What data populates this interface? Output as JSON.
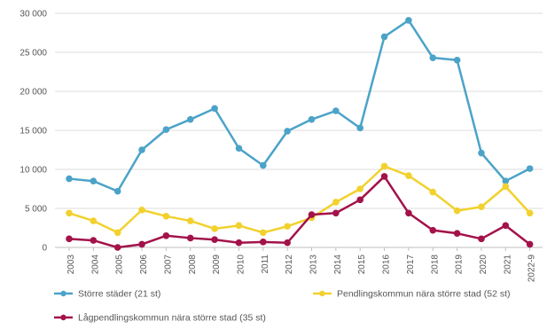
{
  "chart_data": {
    "type": "line",
    "title": "",
    "xlabel": "",
    "ylabel": "",
    "categories": [
      "2003",
      "2004",
      "2005",
      "2006",
      "2007",
      "2008",
      "2009",
      "2010",
      "2011",
      "2012",
      "2013",
      "2014",
      "2015",
      "2016",
      "2017",
      "2018",
      "2019",
      "2020",
      "2021",
      "2022-9"
    ],
    "ylim": [
      0,
      30000
    ],
    "yticks": [
      "0",
      "5 000",
      "10 000",
      "15 000",
      "20 000",
      "25 000",
      "30 000"
    ],
    "ytick_values": [
      0,
      5000,
      10000,
      15000,
      20000,
      25000,
      30000
    ],
    "grid": "horizontal",
    "legend_position": "bottom",
    "series": [
      {
        "name": "Större städer (21 st)",
        "color": "#4ba3c8",
        "values": [
          8800,
          8500,
          7200,
          12500,
          15100,
          16400,
          17800,
          12700,
          10500,
          14900,
          16400,
          17500,
          15300,
          27000,
          29100,
          24300,
          24000,
          12100,
          8500,
          10100
        ]
      },
      {
        "name": "Pendlingskommun nära större stad (52 st)",
        "color": "#f2d12e",
        "values": [
          4400,
          3400,
          1900,
          4800,
          4000,
          3400,
          2400,
          2800,
          1900,
          2700,
          3800,
          5800,
          7500,
          10400,
          9200,
          7100,
          4700,
          5200,
          7800,
          4400
        ]
      },
      {
        "name": "Lågpendlingskommun nära större stad (35 st)",
        "color": "#a3124a",
        "values": [
          1100,
          900,
          0,
          400,
          1500,
          1200,
          1000,
          600,
          700,
          600,
          4200,
          4400,
          6100,
          9100,
          4400,
          2200,
          1800,
          1100,
          2800,
          400
        ]
      }
    ]
  }
}
